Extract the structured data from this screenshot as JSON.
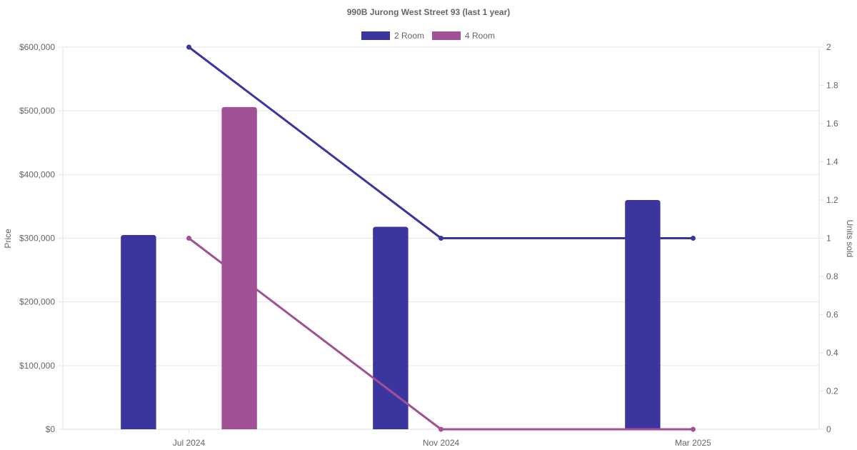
{
  "chart_data": {
    "type": "bar",
    "title": "990B Jurong West Street 93 (last 1 year)",
    "categories": [
      "Jul 2024",
      "Nov 2024",
      "Mar 2025"
    ],
    "y_left": {
      "label": "Price",
      "range": [
        0,
        600000
      ],
      "ticks": [
        "$0",
        "$100,000",
        "$200,000",
        "$300,000",
        "$400,000",
        "$500,000",
        "$600,000"
      ]
    },
    "y_right": {
      "label": "Units sold",
      "range": [
        0,
        2
      ],
      "ticks": [
        "0",
        "0.2",
        "0.4",
        "0.6",
        "0.8",
        "1",
        "1.2",
        "1.4",
        "1.6",
        "1.8",
        "2"
      ]
    },
    "grid": true,
    "legend_position": "top-center",
    "series": [
      {
        "name": "2 Room",
        "color": "#3b35a0",
        "bar_values": [
          305000,
          318000,
          360000
        ],
        "line_values": [
          2,
          1,
          1
        ]
      },
      {
        "name": "4 Room",
        "color": "#a05095",
        "bar_values": [
          506000,
          null,
          null
        ],
        "line_values": [
          1,
          0,
          0
        ]
      }
    ]
  }
}
